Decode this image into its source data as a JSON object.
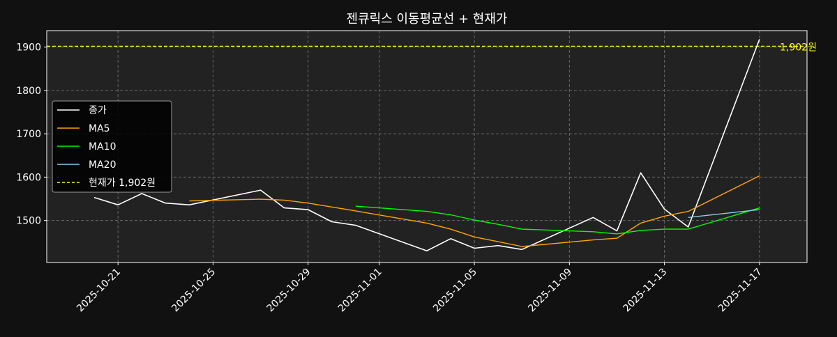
{
  "chart_data": {
    "type": "line",
    "title": "젠큐릭스 이동평균선 + 현재가",
    "xlabel": "",
    "ylabel": "",
    "x_axis": "date",
    "xlim": [
      "2025-10-18",
      "2025-11-19"
    ],
    "ylim": [
      1403,
      1938
    ],
    "y_ticks": [
      1500,
      1600,
      1700,
      1800,
      1900
    ],
    "x_ticks": [
      "2025-10-21",
      "2025-10-25",
      "2025-10-29",
      "2025-11-01",
      "2025-11-05",
      "2025-11-09",
      "2025-11-13",
      "2025-11-17"
    ],
    "grid": true,
    "legend_position": "center-left",
    "series": [
      {
        "name": "종가",
        "color": "#ffffff",
        "points": [
          [
            "2025-10-20",
            1553
          ],
          [
            "2025-10-21",
            1536
          ],
          [
            "2025-10-22",
            1562
          ],
          [
            "2025-10-23",
            1540
          ],
          [
            "2025-10-24",
            1536
          ],
          [
            "2025-10-27",
            1570
          ],
          [
            "2025-10-28",
            1529
          ],
          [
            "2025-10-29",
            1525
          ],
          [
            "2025-10-30",
            1497
          ],
          [
            "2025-10-31",
            1489
          ],
          [
            "2025-11-03",
            1430
          ],
          [
            "2025-11-04",
            1458
          ],
          [
            "2025-11-05",
            1436
          ],
          [
            "2025-11-06",
            1442
          ],
          [
            "2025-11-07",
            1433
          ],
          [
            "2025-11-10",
            1507
          ],
          [
            "2025-11-11",
            1476
          ],
          [
            "2025-11-12",
            1610
          ],
          [
            "2025-11-13",
            1526
          ],
          [
            "2025-11-14",
            1485
          ],
          [
            "2025-11-17",
            1918
          ]
        ]
      },
      {
        "name": "MA5",
        "color": "#ffa500",
        "points": [
          [
            "2025-10-24",
            1545
          ],
          [
            "2025-10-27",
            1549
          ],
          [
            "2025-10-28",
            1547
          ],
          [
            "2025-10-29",
            1540
          ],
          [
            "2025-10-30",
            1531
          ],
          [
            "2025-10-31",
            1522
          ],
          [
            "2025-11-03",
            1494
          ],
          [
            "2025-11-04",
            1480
          ],
          [
            "2025-11-05",
            1462
          ],
          [
            "2025-11-06",
            1451
          ],
          [
            "2025-11-07",
            1440
          ],
          [
            "2025-11-10",
            1455
          ],
          [
            "2025-11-11",
            1459
          ],
          [
            "2025-11-12",
            1494
          ],
          [
            "2025-11-13",
            1510
          ],
          [
            "2025-11-14",
            1521
          ],
          [
            "2025-11-17",
            1603
          ]
        ]
      },
      {
        "name": "MA10",
        "color": "#00ff00",
        "points": [
          [
            "2025-10-31",
            1533
          ],
          [
            "2025-11-03",
            1521
          ],
          [
            "2025-11-04",
            1513
          ],
          [
            "2025-11-05",
            1501
          ],
          [
            "2025-11-06",
            1491
          ],
          [
            "2025-11-07",
            1480
          ],
          [
            "2025-11-10",
            1474
          ],
          [
            "2025-11-11",
            1469
          ],
          [
            "2025-11-12",
            1477
          ],
          [
            "2025-11-13",
            1480
          ],
          [
            "2025-11-14",
            1480
          ],
          [
            "2025-11-17",
            1529
          ]
        ]
      },
      {
        "name": "MA20",
        "color": "#87ceeb",
        "points": [
          [
            "2025-11-14",
            1507
          ],
          [
            "2025-11-17",
            1525
          ]
        ]
      }
    ],
    "reference_line": {
      "name": "현재가 1,902원",
      "value": 1902,
      "label": "1,902원",
      "color": "#ffff00",
      "style": "dashed"
    }
  }
}
